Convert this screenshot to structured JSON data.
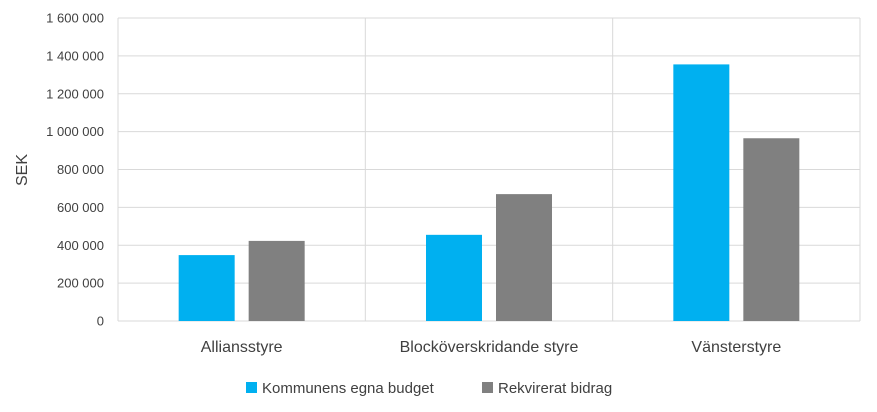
{
  "chart_data": {
    "type": "bar",
    "title": "",
    "xlabel": "",
    "ylabel": "SEK",
    "ylim": [
      0,
      1600000
    ],
    "yticks": [
      0,
      200000,
      400000,
      600000,
      800000,
      1000000,
      1200000,
      1400000,
      1600000
    ],
    "ytick_labels": [
      "0",
      "200 000",
      "400 000",
      "600 000",
      "800 000",
      "1 000 000",
      "1 200 000",
      "1 400 000",
      "1 600 000"
    ],
    "categories": [
      "Alliansstyre",
      "Blocköverskridande styre",
      "Vänsterstyre"
    ],
    "series": [
      {
        "name": "Kommunens egna budget",
        "color": "#00B0F0",
        "values": [
          348000,
          455000,
          1355000
        ]
      },
      {
        "name": "Rekvirerat bidrag",
        "color": "#808080",
        "values": [
          423000,
          670000,
          965000
        ]
      }
    ],
    "grid": true,
    "legend_position": "bottom"
  }
}
